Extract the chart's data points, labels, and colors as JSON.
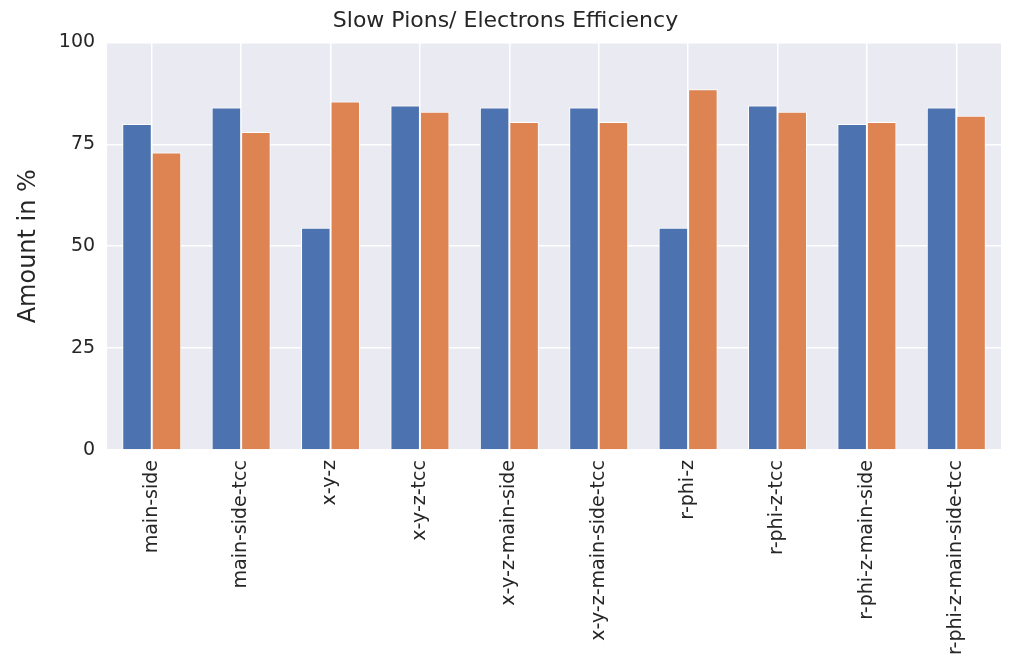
{
  "chart_data": {
    "type": "bar",
    "title": "Slow Pions/ Electrons Efficiency",
    "ylabel": "Amount in %",
    "categories": [
      "main-side",
      "main-side-tcc",
      "x-y-z",
      "x-y-z-tcc",
      "x-y-z-main-side",
      "x-y-z-main-side-tcc",
      "r-phi-z",
      "r-phi-z-tcc",
      "r-phi-z-main-side",
      "r-phi-z-main-side-tcc"
    ],
    "series": [
      {
        "color": "#4c72b0",
        "values": [
          80,
          84,
          54.5,
          84.5,
          84,
          84,
          54.5,
          84.5,
          80,
          84
        ]
      },
      {
        "color": "#dd8452",
        "values": [
          73,
          78,
          85.5,
          83,
          80.5,
          80.5,
          88.5,
          83,
          80.5,
          82
        ]
      }
    ],
    "ylim": [
      0,
      100
    ],
    "yticks": [
      0,
      25,
      50,
      75,
      100
    ],
    "grid": true,
    "legend": false
  }
}
